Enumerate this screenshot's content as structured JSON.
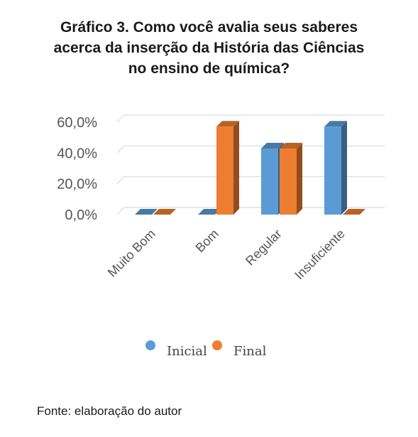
{
  "title_lines": [
    "Gráfico 3. Como você avalia seus saberes",
    "acerca da inserção da História das Ciências",
    "no ensino de química?"
  ],
  "source": "Fonte: elaboração do autor",
  "chart_data": {
    "type": "bar",
    "title": "Gráfico 3. Como você avalia seus saberes acerca da inserção da História das Ciências no ensino de química?",
    "categories": [
      "Muito Bom",
      "Bom",
      "Regular",
      "Insuficiente"
    ],
    "series": [
      {
        "name": "Inicial",
        "values": [
          0,
          0,
          42.9,
          57.1
        ],
        "color": "#5b9bd5"
      },
      {
        "name": "Final",
        "values": [
          0,
          57.1,
          42.9,
          0
        ],
        "color": "#ed7d31"
      }
    ],
    "y_ticks": [
      "0,0%",
      "20,0%",
      "40,0%",
      "60,0%"
    ],
    "ylim": [
      0,
      60
    ],
    "grid": true,
    "legend_position": "bottom",
    "style": "3d-clustered-column"
  }
}
